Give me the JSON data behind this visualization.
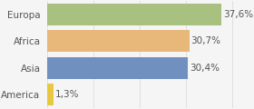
{
  "categories": [
    "Europa",
    "Africa",
    "Asia",
    "America"
  ],
  "values": [
    37.6,
    30.7,
    30.4,
    1.3
  ],
  "labels": [
    "37,6%",
    "30,7%",
    "30,4%",
    "1,3%"
  ],
  "bar_colors": [
    "#a8c080",
    "#e8b87a",
    "#7090c0",
    "#e8c840"
  ],
  "background_color": "#f5f5f5",
  "xlim": [
    0,
    42
  ],
  "bar_height": 0.82,
  "label_fontsize": 7.5,
  "tick_fontsize": 7.5,
  "text_color": "#555555",
  "grid_color": "#dddddd"
}
